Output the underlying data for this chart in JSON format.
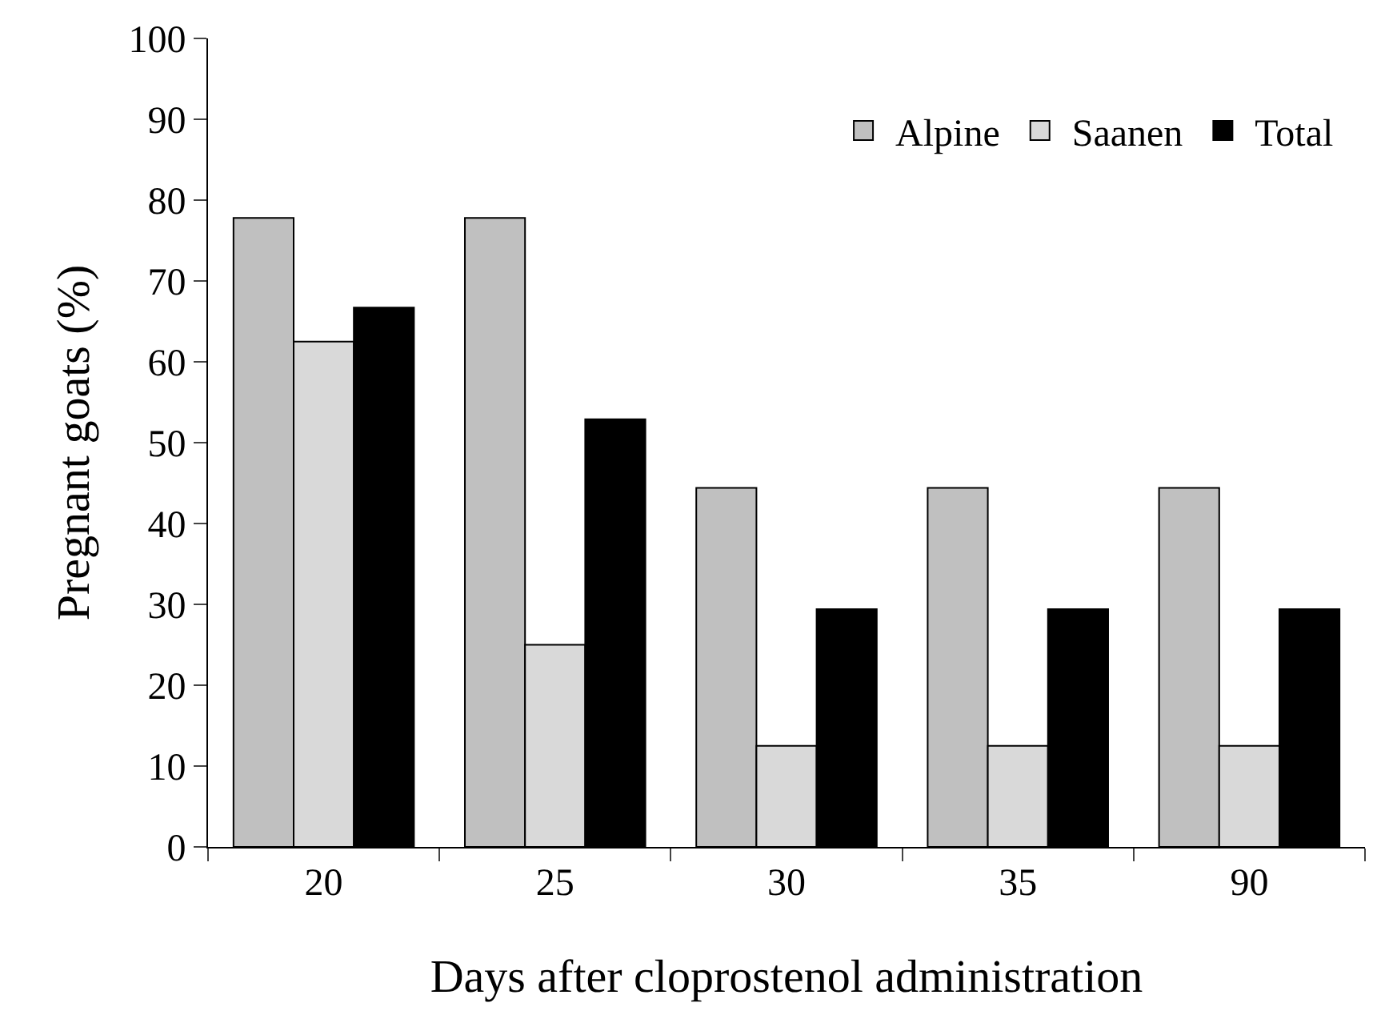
{
  "chart_data": {
    "type": "bar",
    "xlabel": "Days after cloprostenol administration",
    "ylabel": "Pregnant goats (%)",
    "categories": [
      "20",
      "25",
      "30",
      "35",
      "90"
    ],
    "series": [
      {
        "name": "Alpine",
        "color": "#c0c0c0",
        "values": [
          77.8,
          77.8,
          44.4,
          44.4,
          44.4
        ]
      },
      {
        "name": "Saanen",
        "color": "#d9d9d9",
        "values": [
          62.5,
          25,
          12.5,
          12.5,
          12.5
        ]
      },
      {
        "name": "Total",
        "color": "#000000",
        "values": [
          66.7,
          52.9,
          29.4,
          29.4,
          29.4
        ]
      }
    ],
    "ylim": [
      0,
      100
    ],
    "yticks": [
      0,
      10,
      20,
      30,
      40,
      50,
      60,
      70,
      80,
      90,
      100
    ],
    "legend": "top right"
  }
}
